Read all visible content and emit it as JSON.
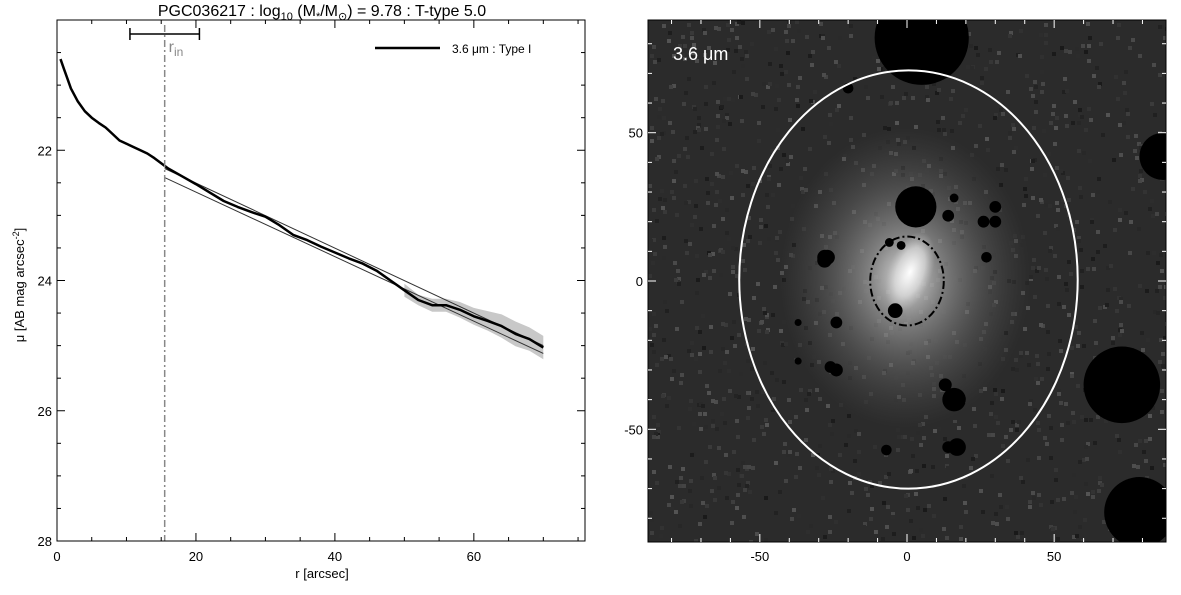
{
  "chart_data": [
    {
      "type": "line",
      "title": {
        "prefix": "PGC036217 : log",
        "sub": "10",
        "mass": " (M",
        "mass_sub": "*",
        "over": "/M",
        "sun_sub": "⊙",
        "suffix": ") = 9.78 : T-type 5.0"
      },
      "xlabel": "r [arcsec]",
      "ylabel": {
        "main": "μ [AB mag arcsec",
        "sup": "-2",
        "close": "]"
      },
      "xlim": [
        0,
        76
      ],
      "ylim": [
        28,
        20.0
      ],
      "y_inverted": true,
      "x_ticks": [
        0,
        20,
        40,
        60
      ],
      "y_ticks": [
        22,
        24,
        26,
        28
      ],
      "legend": {
        "label": "3.6 μm : Type I",
        "position": "top-right"
      },
      "series": [
        {
          "name": "3.6 μm : Type I",
          "color": "#000000",
          "x": [
            0.5,
            1,
            1.5,
            2,
            3,
            4,
            5,
            6,
            7,
            8,
            9,
            10,
            11,
            12,
            13,
            14,
            15,
            16,
            18,
            20,
            22,
            24,
            26,
            28,
            30,
            32,
            34,
            36,
            38,
            40,
            42,
            44,
            46,
            48,
            50,
            52,
            54,
            56,
            58,
            60,
            62,
            64,
            66,
            68,
            70
          ],
          "y": [
            20.6,
            20.75,
            20.9,
            21.05,
            21.25,
            21.4,
            21.5,
            21.58,
            21.65,
            21.75,
            21.85,
            21.9,
            21.95,
            22.0,
            22.05,
            22.12,
            22.2,
            22.28,
            22.4,
            22.52,
            22.65,
            22.78,
            22.87,
            22.95,
            23.02,
            23.15,
            23.3,
            23.38,
            23.48,
            23.57,
            23.66,
            23.74,
            23.85,
            24.0,
            24.15,
            24.3,
            24.38,
            24.38,
            24.45,
            24.55,
            24.62,
            24.7,
            24.82,
            24.9,
            25.03
          ]
        }
      ],
      "uncertainty_band": {
        "color": "#c8c8c8",
        "x": [
          50,
          52,
          54,
          56,
          58,
          60,
          62,
          64,
          66,
          68,
          70
        ],
        "lower": [
          24.05,
          24.22,
          24.28,
          24.28,
          24.33,
          24.42,
          24.47,
          24.52,
          24.63,
          24.72,
          24.85
        ],
        "upper": [
          24.25,
          24.38,
          24.48,
          24.48,
          24.57,
          24.68,
          24.77,
          24.88,
          25.01,
          25.08,
          25.21
        ]
      },
      "fit_lines": [
        {
          "x": [
            15.5,
            70
          ],
          "y": [
            22.28,
            25.0
          ]
        },
        {
          "x": [
            15.5,
            70
          ],
          "y": [
            22.42,
            25.12
          ]
        }
      ],
      "r_in": {
        "label": "r",
        "sub": "in",
        "x": 15.5,
        "range": [
          10.5,
          20.5
        ],
        "color": "#888888"
      }
    },
    {
      "type": "image",
      "label": "3.6 μm",
      "xlim": [
        -88,
        88
      ],
      "ylim": [
        -88,
        88
      ],
      "x_ticks": [
        -50,
        0,
        50
      ],
      "y_ticks": [
        -50,
        0,
        50
      ],
      "ellipses": [
        {
          "style": "solid",
          "color": "#ffffff",
          "cx": 0.5,
          "cy": 0.5,
          "rx": 57.5,
          "ry": 70.5
        },
        {
          "style": "dash-dot",
          "color": "#000000",
          "cx": 0,
          "cy": 0,
          "rx": 12.5,
          "ry": 15
        }
      ],
      "masked_sources": [
        {
          "x": 5,
          "y": 82,
          "r": 16
        },
        {
          "x": 87,
          "y": 42,
          "r": 8
        },
        {
          "x": 73,
          "y": -35,
          "r": 13
        },
        {
          "x": 79,
          "y": -78,
          "r": 12
        },
        {
          "x": 3,
          "y": 25,
          "r": 7
        },
        {
          "x": 16,
          "y": -40,
          "r": 4
        },
        {
          "x": -27,
          "y": 8,
          "r": 2.5
        },
        {
          "x": -26,
          "y": -29,
          "r": 2
        },
        {
          "x": -28,
          "y": 7,
          "r": 2.5
        },
        {
          "x": -2,
          "y": 12,
          "r": 1.5
        },
        {
          "x": 14,
          "y": 22,
          "r": 2
        },
        {
          "x": 16,
          "y": 28,
          "r": 1.5
        },
        {
          "x": 30,
          "y": 25,
          "r": 2
        },
        {
          "x": 26,
          "y": 20,
          "r": 2
        },
        {
          "x": 30,
          "y": 20,
          "r": 2
        },
        {
          "x": 27,
          "y": 8,
          "r": 1.8
        },
        {
          "x": -28,
          "y": 8,
          "r": 2.5
        },
        {
          "x": -24,
          "y": -14,
          "r": 2
        },
        {
          "x": -4,
          "y": -10,
          "r": 2.5
        },
        {
          "x": -24,
          "y": -30,
          "r": 2.2
        },
        {
          "x": 13,
          "y": -35,
          "r": 2.2
        },
        {
          "x": 17,
          "y": -56,
          "r": 3
        },
        {
          "x": -7,
          "y": -57,
          "r": 1.8
        },
        {
          "x": 14,
          "y": -56,
          "r": 2
        },
        {
          "x": -37,
          "y": -27,
          "r": 1.2
        },
        {
          "x": -37,
          "y": -14,
          "r": 1.2
        },
        {
          "x": -6,
          "y": 13,
          "r": 1.5
        },
        {
          "x": -20,
          "y": 65,
          "r": 1.8
        }
      ]
    }
  ]
}
